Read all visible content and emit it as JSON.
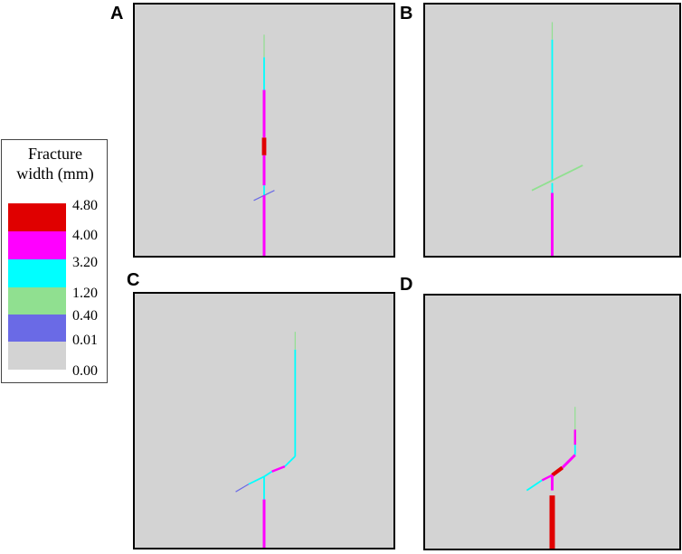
{
  "colors": {
    "red": "#e00000",
    "magenta": "#ff00ff",
    "cyan": "#00ffff",
    "green": "#90e090",
    "blue": "#6a6ae6",
    "gray": "#d3d3d3"
  },
  "legend": {
    "title_line1": "Fracture",
    "title_line2": "width (mm)",
    "swatches": [
      "red",
      "magenta",
      "cyan",
      "green",
      "blue",
      "gray"
    ],
    "ticks": [
      "4.80",
      "4.00",
      "3.20",
      "1.20",
      "0.40",
      "0.01",
      "0.00"
    ]
  },
  "panels": [
    {
      "label": "A",
      "segments": [
        {
          "p1": [
            0.5,
            0.12
          ],
          "p2": [
            0.5,
            0.21
          ],
          "w": 1,
          "c": "green"
        },
        {
          "p1": [
            0.5,
            0.21
          ],
          "p2": [
            0.5,
            0.34
          ],
          "w": 1.5,
          "c": "cyan"
        },
        {
          "p1": [
            0.5,
            0.34
          ],
          "p2": [
            0.5,
            0.53
          ],
          "w": 2.5,
          "c": "magenta"
        },
        {
          "p1": [
            0.5,
            0.53
          ],
          "p2": [
            0.5,
            0.6
          ],
          "w": 4,
          "c": "red"
        },
        {
          "p1": [
            0.5,
            0.6
          ],
          "p2": [
            0.5,
            0.72
          ],
          "w": 2.5,
          "c": "magenta"
        },
        {
          "p1": [
            0.5,
            0.72
          ],
          "p2": [
            0.5,
            0.76
          ],
          "w": 1.5,
          "c": "cyan"
        },
        {
          "p1": [
            0.46,
            0.78
          ],
          "p2": [
            0.54,
            0.74
          ],
          "w": 1,
          "c": "blue"
        },
        {
          "p1": [
            0.5,
            0.76
          ],
          "p2": [
            0.5,
            1.0
          ],
          "w": 2.5,
          "c": "magenta"
        }
      ]
    },
    {
      "label": "B",
      "segments": [
        {
          "p1": [
            0.5,
            0.07
          ],
          "p2": [
            0.5,
            0.14
          ],
          "w": 1,
          "c": "green"
        },
        {
          "p1": [
            0.5,
            0.14
          ],
          "p2": [
            0.5,
            0.7
          ],
          "w": 1.5,
          "c": "cyan"
        },
        {
          "p1": [
            0.42,
            0.74
          ],
          "p2": [
            0.62,
            0.64
          ],
          "w": 1.5,
          "c": "green"
        },
        {
          "p1": [
            0.5,
            0.71
          ],
          "p2": [
            0.5,
            0.75
          ],
          "w": 1.5,
          "c": "cyan"
        },
        {
          "p1": [
            0.5,
            0.75
          ],
          "p2": [
            0.5,
            1.0
          ],
          "w": 2.5,
          "c": "magenta"
        }
      ]
    },
    {
      "label": "C",
      "segments": [
        {
          "p1": [
            0.62,
            0.15
          ],
          "p2": [
            0.62,
            0.22
          ],
          "w": 1,
          "c": "green"
        },
        {
          "p1": [
            0.62,
            0.22
          ],
          "p2": [
            0.62,
            0.64
          ],
          "w": 1.5,
          "c": "cyan"
        },
        {
          "p1": [
            0.62,
            0.64
          ],
          "p2": [
            0.58,
            0.68
          ],
          "w": 1.5,
          "c": "cyan"
        },
        {
          "p1": [
            0.58,
            0.68
          ],
          "p2": [
            0.53,
            0.7
          ],
          "w": 2,
          "c": "magenta"
        },
        {
          "p1": [
            0.53,
            0.7
          ],
          "p2": [
            0.5,
            0.72
          ],
          "w": 1.5,
          "c": "cyan"
        },
        {
          "p1": [
            0.5,
            0.72
          ],
          "p2": [
            0.44,
            0.75
          ],
          "w": 1.5,
          "c": "cyan"
        },
        {
          "p1": [
            0.44,
            0.75
          ],
          "p2": [
            0.39,
            0.78
          ],
          "w": 1,
          "c": "blue"
        },
        {
          "p1": [
            0.5,
            0.72
          ],
          "p2": [
            0.5,
            0.81
          ],
          "w": 1.5,
          "c": "cyan"
        },
        {
          "p1": [
            0.5,
            0.81
          ],
          "p2": [
            0.5,
            1.0
          ],
          "w": 2.5,
          "c": "magenta"
        }
      ]
    },
    {
      "label": "D",
      "segments": [
        {
          "p1": [
            0.59,
            0.44
          ],
          "p2": [
            0.59,
            0.53
          ],
          "w": 1,
          "c": "green"
        },
        {
          "p1": [
            0.59,
            0.53
          ],
          "p2": [
            0.59,
            0.59
          ],
          "w": 2,
          "c": "magenta"
        },
        {
          "p1": [
            0.59,
            0.59
          ],
          "p2": [
            0.59,
            0.63
          ],
          "w": 1.5,
          "c": "cyan"
        },
        {
          "p1": [
            0.59,
            0.63
          ],
          "p2": [
            0.54,
            0.68
          ],
          "w": 2.5,
          "c": "magenta"
        },
        {
          "p1": [
            0.54,
            0.68
          ],
          "p2": [
            0.5,
            0.71
          ],
          "w": 3.5,
          "c": "red"
        },
        {
          "p1": [
            0.5,
            0.71
          ],
          "p2": [
            0.46,
            0.73
          ],
          "w": 2,
          "c": "magenta"
        },
        {
          "p1": [
            0.46,
            0.73
          ],
          "p2": [
            0.4,
            0.77
          ],
          "w": 1.5,
          "c": "cyan"
        },
        {
          "p1": [
            0.5,
            0.71
          ],
          "p2": [
            0.5,
            0.77
          ],
          "w": 2.5,
          "c": "magenta"
        },
        {
          "p1": [
            0.5,
            0.79
          ],
          "p2": [
            0.5,
            1.0
          ],
          "w": 5,
          "c": "red"
        }
      ]
    }
  ]
}
